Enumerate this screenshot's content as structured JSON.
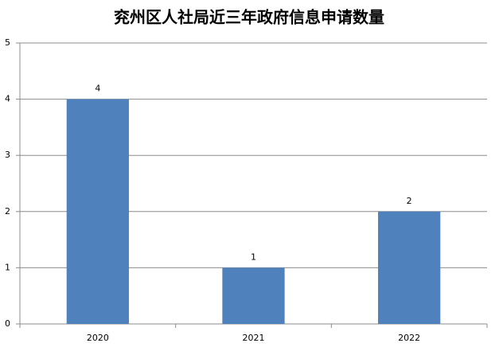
{
  "chart_data": {
    "type": "bar",
    "title": "兖州区人社局近三年政府信息申请数量",
    "categories": [
      "2020",
      "2021",
      "2022"
    ],
    "values": [
      4,
      1,
      2
    ],
    "color": "#4f81bd",
    "ylim": [
      0,
      5
    ],
    "yticks": [
      0,
      1,
      2,
      3,
      4,
      5
    ],
    "grid": true
  }
}
